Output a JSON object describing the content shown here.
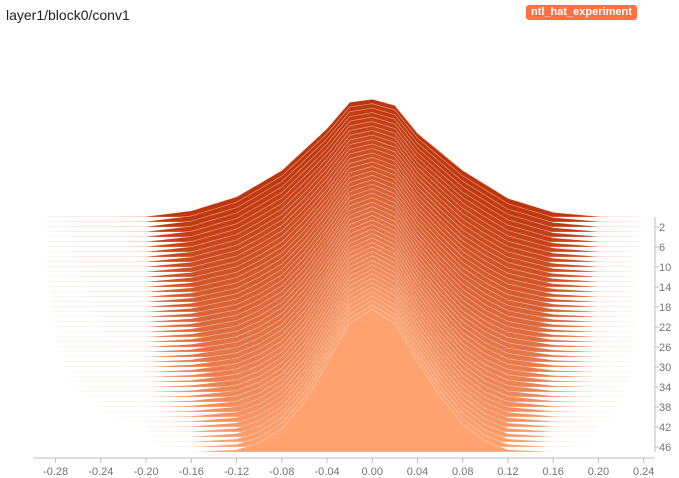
{
  "chart_data": {
    "type": "area",
    "subtype": "histogram-offset",
    "title": "layer1/block0/conv1",
    "legend": {
      "label": "ntl_hat_experiment",
      "color": "#ff7043",
      "placement": "top-right"
    },
    "x_ticks": [
      -0.28,
      -0.24,
      -0.2,
      -0.16,
      -0.12,
      -0.08,
      -0.04,
      0.0,
      0.04,
      0.08,
      0.12,
      0.16,
      0.2,
      0.24
    ],
    "x_tick_labels": [
      "-0.28",
      "-0.24",
      "-0.20",
      "-0.16",
      "-0.12",
      "-0.08",
      "-0.04",
      "0.00",
      "0.04",
      "0.08",
      "0.12",
      "0.16",
      "0.20",
      "0.24"
    ],
    "xlim": [
      -0.3,
      0.25
    ],
    "y_ticks": [
      2,
      6,
      10,
      14,
      18,
      22,
      26,
      30,
      34,
      38,
      42,
      46
    ],
    "y_tick_labels": [
      "2",
      "6",
      "10",
      "14",
      "18",
      "22",
      "26",
      "30",
      "34",
      "38",
      "42",
      "46"
    ],
    "step_range": [
      0,
      47
    ],
    "colors": {
      "oldest": "#bf360c",
      "newest": "#ffa270"
    },
    "series": {
      "steps_per_slice": 1,
      "first_slice": {
        "step": 0,
        "x": [
          -0.3,
          -0.2,
          -0.16,
          -0.12,
          -0.08,
          -0.04,
          -0.02,
          0.0,
          0.02,
          0.04,
          0.08,
          0.12,
          0.16,
          0.2,
          0.24
        ],
        "y": [
          0.0,
          0.003,
          0.04,
          0.13,
          0.3,
          0.57,
          0.74,
          0.76,
          0.72,
          0.54,
          0.3,
          0.12,
          0.03,
          0.003,
          0.0
        ]
      },
      "last_slice": {
        "step": 47,
        "x": [
          -0.3,
          -0.16,
          -0.12,
          -0.1,
          -0.08,
          -0.06,
          -0.04,
          -0.02,
          0.0,
          0.02,
          0.04,
          0.06,
          0.08,
          0.1,
          0.12,
          0.16,
          0.24
        ],
        "y": [
          0.0,
          0.0,
          0.015,
          0.06,
          0.15,
          0.32,
          0.57,
          0.83,
          0.92,
          0.83,
          0.58,
          0.36,
          0.18,
          0.07,
          0.015,
          0.0,
          0.0
        ]
      }
    }
  }
}
